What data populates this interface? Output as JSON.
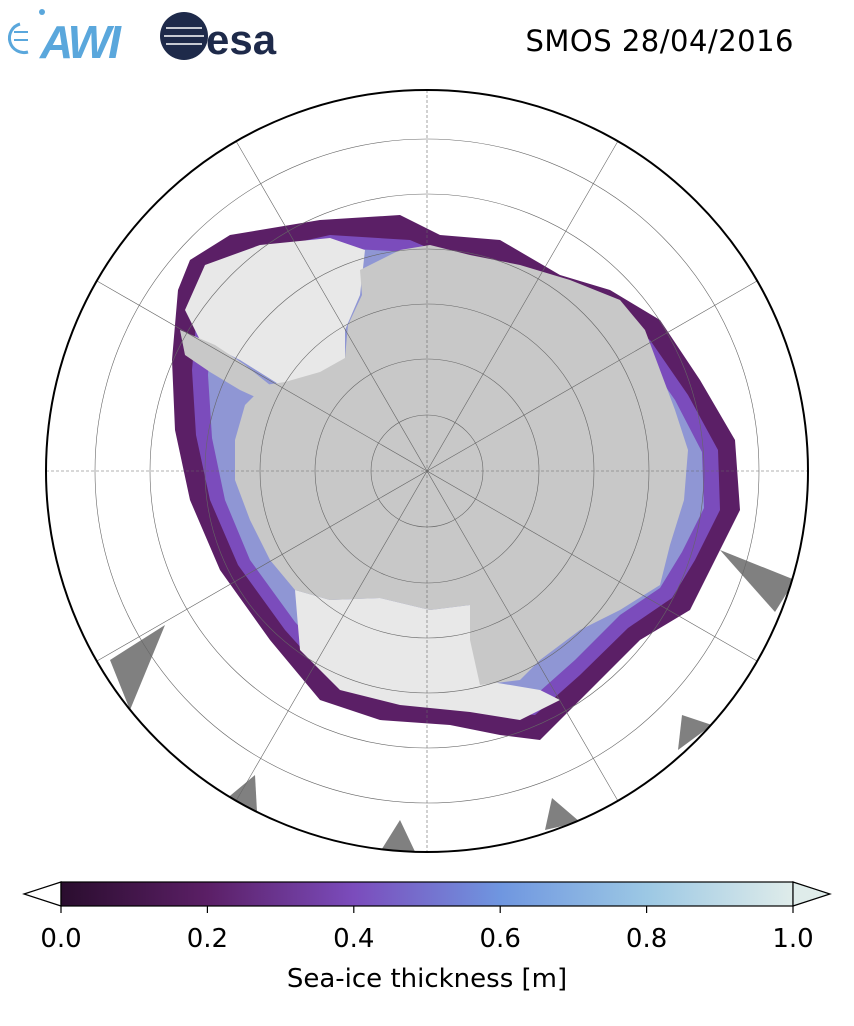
{
  "header": {
    "title": "SMOS 28/04/2016",
    "logos": [
      {
        "name": "awi-logo",
        "text": "AWI",
        "color": "#5aa7dc"
      },
      {
        "name": "esa-logo",
        "text": "esa",
        "color": "#1e2a4a"
      }
    ]
  },
  "map": {
    "projection": "south-polar-stereographic",
    "land_color": "#c8c8c8",
    "ice_shelf_color": "#e8e8e8",
    "no_data_color": "#808080",
    "graticule": "on"
  },
  "colorbar": {
    "label": "Sea-ice thickness [m]",
    "min": 0.0,
    "max": 1.0,
    "ticks": [
      "0.0",
      "0.2",
      "0.4",
      "0.6",
      "0.8",
      "1.0"
    ],
    "extend": "both",
    "colors": [
      "#2a0d2e",
      "#5b1f66",
      "#7b4cbc",
      "#6f96e0",
      "#9cc8e4",
      "#dfecea"
    ]
  }
}
